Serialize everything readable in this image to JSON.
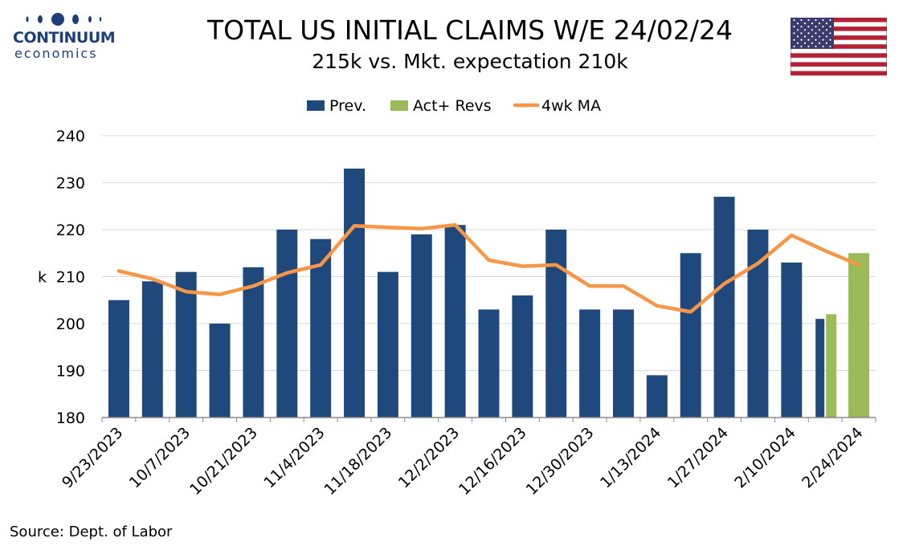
{
  "logo": {
    "name": "CONTINUUM",
    "tagline": "economics"
  },
  "header": {
    "title": "TOTAL US INITIAL CLAIMS W/E 24/02/24",
    "subtitle": "215k vs. Mkt. expectation 210k"
  },
  "footer": {
    "source": "Source: Dept. of Labor"
  },
  "colors": {
    "prev": "#1f497d",
    "act": "#9bbb59",
    "ma": "#f79646",
    "logo": "#1f3f78",
    "axis": "#888888"
  },
  "chart_data": {
    "type": "bar",
    "title": "TOTAL US INITIAL CLAIMS W/E 24/02/24",
    "subtitle": "215k vs. Mkt. expectation 210k",
    "ylabel": "k",
    "xlabel": "",
    "ylim": [
      180,
      240
    ],
    "yticks": [
      180,
      190,
      200,
      210,
      220,
      230,
      240
    ],
    "grid": true,
    "legend_position": "top",
    "categories": [
      "9/23/2023",
      "9/30/2023",
      "10/7/2023",
      "10/14/2023",
      "10/21/2023",
      "10/28/2023",
      "11/4/2023",
      "11/11/2023",
      "11/18/2023",
      "11/25/2023",
      "12/2/2023",
      "12/9/2023",
      "12/16/2023",
      "12/23/2023",
      "12/30/2023",
      "1/6/2024",
      "1/13/2024",
      "1/20/2024",
      "1/27/2024",
      "2/3/2024",
      "2/10/2024",
      "2/17/2024",
      "2/24/2024"
    ],
    "xtick_labels": [
      "9/23/2023",
      "10/7/2023",
      "10/21/2023",
      "11/4/2023",
      "11/18/2023",
      "12/2/2023",
      "12/16/2023",
      "12/30/2023",
      "1/13/2024",
      "1/27/2024",
      "2/10/2024",
      "2/24/2024"
    ],
    "series": [
      {
        "name": "Prev.",
        "type": "bar",
        "values": [
          205,
          209,
          211,
          200,
          212,
          220,
          218,
          233,
          211,
          219,
          221,
          203,
          206,
          220,
          203,
          203,
          189,
          215,
          227,
          220,
          213,
          201,
          null
        ]
      },
      {
        "name": "Act+ Revs",
        "type": "bar",
        "values": [
          null,
          null,
          null,
          null,
          null,
          null,
          null,
          null,
          null,
          null,
          null,
          null,
          null,
          null,
          null,
          null,
          null,
          null,
          null,
          null,
          null,
          202,
          215
        ]
      },
      {
        "name": "4wk MA",
        "type": "line",
        "values": [
          211.2,
          209.5,
          206.8,
          206.2,
          208.0,
          210.8,
          212.5,
          220.8,
          220.5,
          220.2,
          221.0,
          213.5,
          212.2,
          212.5,
          208.0,
          208.0,
          203.8,
          202.5,
          208.5,
          212.8,
          218.8,
          215.5,
          212.5
        ]
      }
    ]
  }
}
